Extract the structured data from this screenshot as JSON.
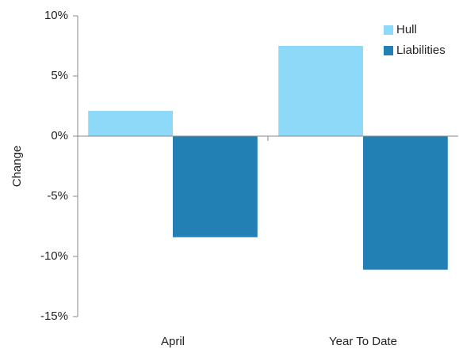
{
  "chart_data": {
    "type": "bar",
    "y_label": "Change",
    "categories": [
      "April",
      "Year To Date"
    ],
    "series": [
      {
        "name": "Hull",
        "color": "#8ed8f8",
        "values": [
          2.1,
          7.5
        ]
      },
      {
        "name": "Liabilities",
        "color": "#2280b5",
        "values": [
          -8.4,
          -11.1
        ]
      }
    ],
    "ylim": [
      -15,
      10
    ],
    "yticks": [
      {
        "value": -15,
        "label": "-15%"
      },
      {
        "value": -10,
        "label": "-10%"
      },
      {
        "value": -5,
        "label": "-5%"
      },
      {
        "value": 0,
        "label": "0%"
      },
      {
        "value": 5,
        "label": "5%"
      },
      {
        "value": 10,
        "label": "10%"
      }
    ],
    "legend": "upper right"
  }
}
